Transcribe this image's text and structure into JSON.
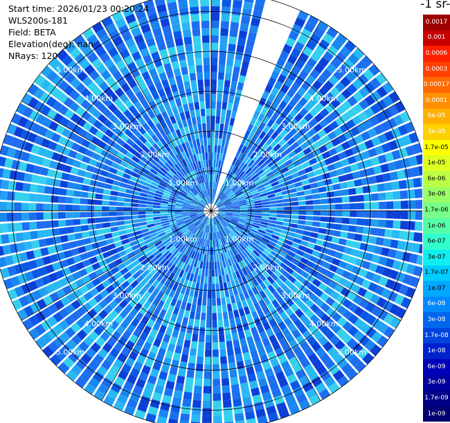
{
  "info": {
    "start_time": "Start time: 2026/01/23 00:20:24",
    "station": "WLS200s-181",
    "field": "Field: BETA",
    "elevation": "Elevation(deg): nan",
    "nrays": "NRays: 120"
  },
  "colorbar": {
    "title": "-1 sr-",
    "levels": [
      "0.0017",
      "0.001",
      "0.0006",
      "0.0003",
      "0.00017",
      "0.0001",
      "6e-05",
      "3e-05",
      "1.7e-05",
      "1e-05",
      "6e-06",
      "3e-06",
      "1.7e-06",
      "1e-06",
      "6e-07",
      "3e-07",
      "1.7e-07",
      "1e-07",
      "6e-08",
      "3e-08",
      "1.7e-08",
      "1e-08",
      "6e-09",
      "3e-09",
      "1.7e-09",
      "1e-09"
    ],
    "colors": [
      "#a00000",
      "#c80000",
      "#ff2000",
      "#ff4000",
      "#ff6a00",
      "#ff9000",
      "#ffb000",
      "#ffd000",
      "#ffff00",
      "#ddff22",
      "#bbff44",
      "#99ff66",
      "#77ff88",
      "#55ffaa",
      "#33ffcc",
      "#11eeee",
      "#00ccff",
      "#00a8ff",
      "#0088ff",
      "#0066ee",
      "#0044dd",
      "#0022cc",
      "#0000bb",
      "#0000a0",
      "#000088",
      "#000070"
    ],
    "text_colors": [
      "#fff",
      "#fff",
      "#fff",
      "#fff",
      "#fff",
      "#fff",
      "#fff",
      "#fff",
      "#000",
      "#000",
      "#000",
      "#000",
      "#000",
      "#000",
      "#000",
      "#000",
      "#000",
      "#000",
      "#fff",
      "#fff",
      "#fff",
      "#fff",
      "#fff",
      "#fff",
      "#fff",
      "#fff"
    ]
  },
  "chart_data": {
    "type": "heatmap",
    "projection": "polar-ppi",
    "nrays": 120,
    "range_rings_km": [
      1,
      2,
      3,
      4,
      5
    ],
    "range_labels": [
      "1.00km",
      "2.00km",
      "3.00km",
      "4.00km",
      "5.00km"
    ],
    "max_range_km": 5.5,
    "missing_sector_deg": [
      15,
      24
    ],
    "cell_colors": [
      "#1e6cf0",
      "#1a86f0",
      "#23a0f3",
      "#0a58e6",
      "#28b8f4",
      "#0c3fd6",
      "#35d0ee",
      "#1a70ee"
    ]
  }
}
